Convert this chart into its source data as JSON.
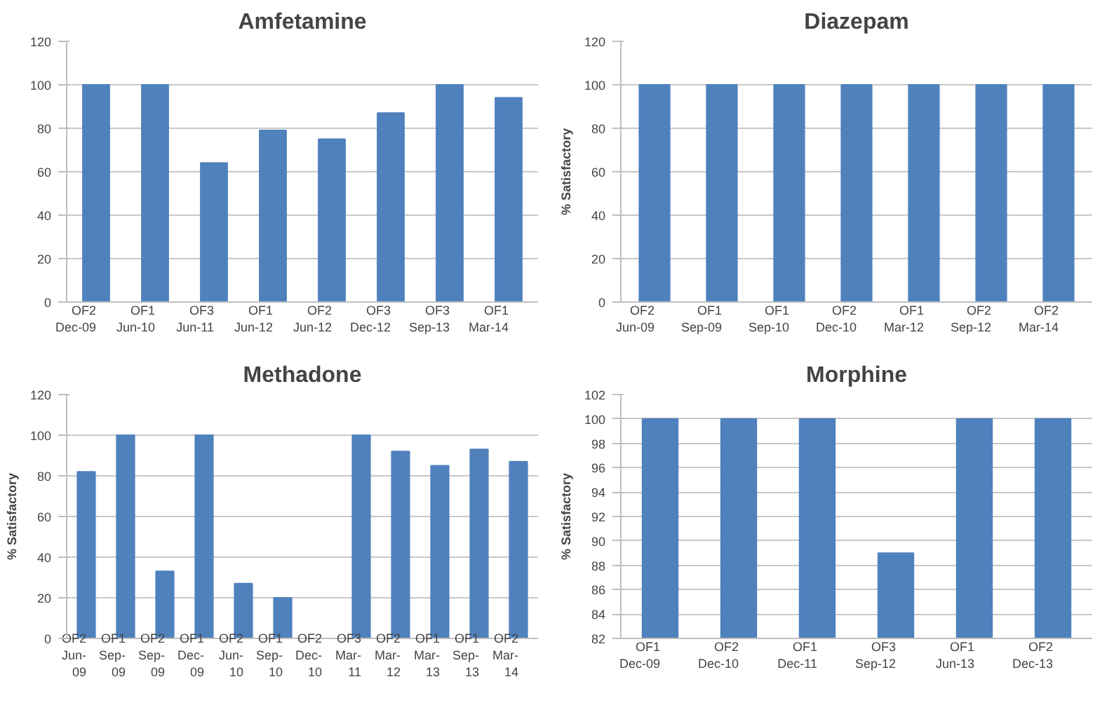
{
  "chart_data": [
    {
      "type": "bar",
      "title": "Amfetamine",
      "categories": [
        "OF2\nDec-09",
        "OF1\nJun-10",
        "OF3\nJun-11",
        "OF1\nJun-12",
        "OF2\nJun-12",
        "OF3\nDec-12",
        "OF3\nSep-13",
        "OF1\nMar-14"
      ],
      "values": [
        100,
        100,
        64,
        79,
        75,
        87,
        100,
        94
      ],
      "color": "#4f81bd",
      "ylim": [
        0,
        120
      ],
      "yticks": [
        0,
        20,
        40,
        60,
        80,
        100,
        120
      ],
      "grid": "y"
    },
    {
      "type": "bar",
      "title": "Diazepam",
      "ylabel": "% Satisfactory",
      "categories": [
        "OF2\nJun-09",
        "OF1\nSep-09",
        "OF1\nSep-10",
        "OF2\nDec-10",
        "OF1\nMar-12",
        "OF2\nSep-12",
        "OF2\nMar-14"
      ],
      "values": [
        100,
        100,
        100,
        100,
        100,
        100,
        100
      ],
      "color": "#4f81bd",
      "ylim": [
        0,
        120
      ],
      "yticks": [
        0,
        20,
        40,
        60,
        80,
        100,
        120
      ],
      "grid": "y"
    },
    {
      "type": "bar",
      "title": "Methadone",
      "ylabel": "% Satisfactory",
      "categories": [
        "OF2\nJun-09",
        "OF1\nSep-09",
        "OF2\nSep-09",
        "OF1\nDec-09",
        "OF2\nJun-10",
        "OF1\nSep-10",
        "OF2\nDec-10",
        "OF3\nMar-11",
        "OF2\nMar-12",
        "OF1\nMar-13",
        "OF1\nSep-13",
        "OF2\nMar-14"
      ],
      "values": [
        82,
        100,
        33,
        100,
        27,
        20,
        0,
        100,
        92,
        85,
        93,
        87
      ],
      "color": "#4f81bd",
      "ylim": [
        0,
        120
      ],
      "yticks": [
        0,
        20,
        40,
        60,
        80,
        100,
        120
      ],
      "grid": "y"
    },
    {
      "type": "bar",
      "title": "Morphine",
      "ylabel": "% Satisfactory",
      "categories": [
        "OF1\nDec-09",
        "OF2\nDec-10",
        "OF1\nDec-11",
        "OF3\nSep-12",
        "OF1\nJun-13",
        "OF2\nDec-13"
      ],
      "values": [
        100,
        100,
        100,
        89,
        100,
        100
      ],
      "color": "#4f81bd",
      "ylim": [
        82,
        102
      ],
      "yticks": [
        82,
        84,
        86,
        88,
        90,
        92,
        94,
        96,
        98,
        100,
        102
      ],
      "grid": "y"
    }
  ]
}
